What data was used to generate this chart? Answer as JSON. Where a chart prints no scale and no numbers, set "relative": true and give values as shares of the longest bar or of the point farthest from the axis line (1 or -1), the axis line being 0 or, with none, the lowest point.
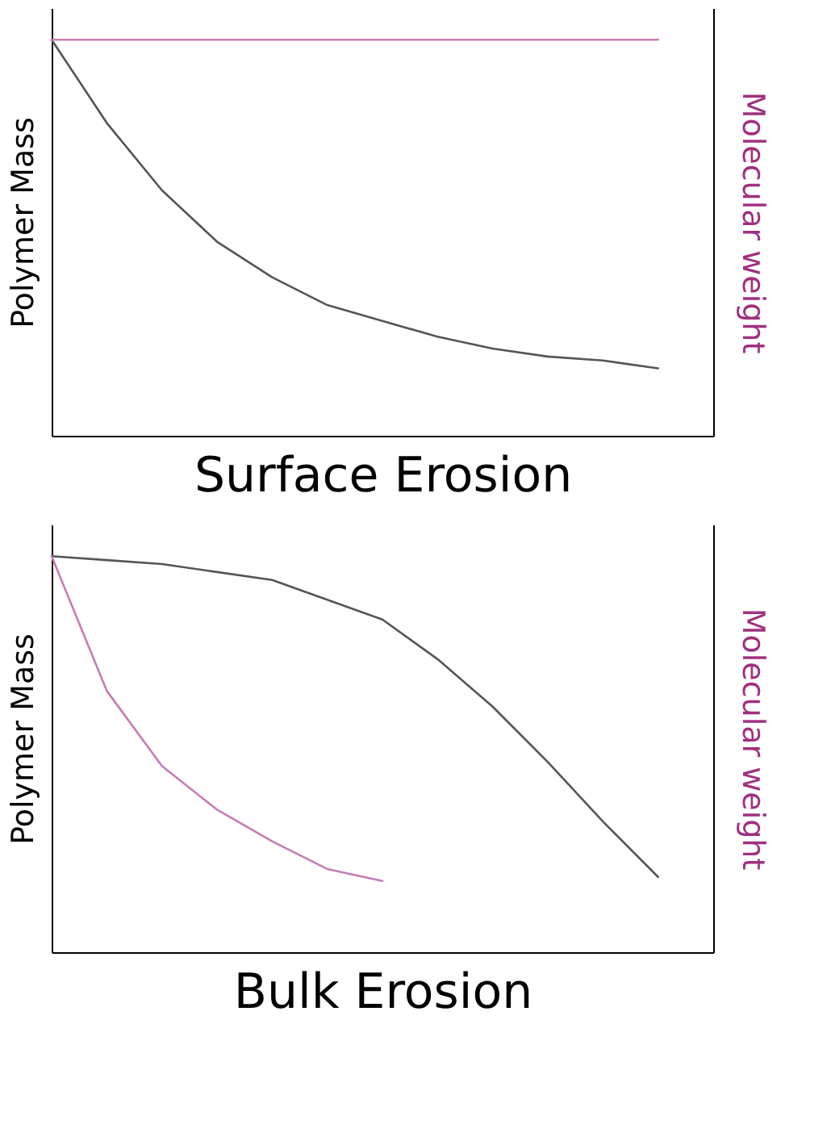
{
  "chart_data": [
    {
      "type": "line",
      "relative": true,
      "xlabel": "Surface Erosion",
      "ylabel": "Polymer Mass",
      "y2label": "Molecular weight",
      "categories": [
        null,
        null,
        null,
        null,
        null,
        null,
        null,
        null,
        null,
        null,
        null,
        null,
        null
      ],
      "series": [
        {
          "color": "#555555",
          "values": [
            1,
            0.79,
            0.62,
            0.49,
            0.4,
            0.33,
            0.29,
            0.25,
            0.22,
            0.2,
            0.19,
            0.17,
            null
          ]
        },
        {
          "color": "#c77bb5",
          "values": [
            1,
            1,
            1,
            1,
            1,
            1,
            1,
            1,
            1,
            1,
            1,
            1,
            null
          ]
        }
      ]
    },
    {
      "type": "line",
      "relative": true,
      "xlabel": "Bulk Erosion",
      "ylabel": "Polymer Mass",
      "y2label": "Molecular weight",
      "categories": [
        null,
        null,
        null,
        null,
        null,
        null,
        null,
        null,
        null,
        null,
        null,
        null,
        null
      ],
      "series": [
        {
          "color": "#555555",
          "values": [
            1,
            0.99,
            0.98,
            0.96,
            0.94,
            0.89,
            0.84,
            0.74,
            0.62,
            0.48,
            0.33,
            0.19,
            null
          ]
        },
        {
          "color": "#c77bb5",
          "values": [
            1,
            0.66,
            0.47,
            0.36,
            0.28,
            0.21,
            0.18,
            null,
            null,
            null,
            null,
            null,
            null
          ]
        }
      ]
    }
  ]
}
